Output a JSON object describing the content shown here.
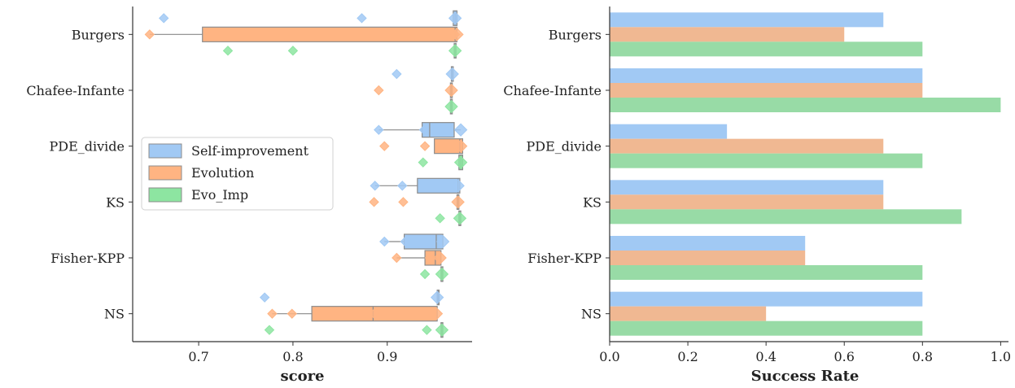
{
  "chart_data": [
    {
      "type": "box",
      "xlabel": "score",
      "categories": [
        "Burgers",
        "Chafee-Infante",
        "PDE_divide",
        "KS",
        "Fisher-KPP",
        "NS"
      ],
      "xlim": [
        0.63,
        0.99
      ],
      "xticks": [
        0.7,
        0.8,
        0.9
      ],
      "xtick_labels": [
        "0.7",
        "0.8",
        "0.9"
      ],
      "legend": {
        "position": "center-left",
        "entries": [
          "Self-improvement",
          "Evolution",
          "Evo_Imp"
        ]
      },
      "series": [
        {
          "name": "Self-improvement",
          "color": "#a1c9f4",
          "boxes": [
            {
              "category": "Burgers",
              "q1": 0.97,
              "median": 0.972,
              "q3": 0.974,
              "whisker_low": 0.97,
              "whisker_high": 0.974,
              "points": [
                0.663,
                0.873,
                0.972
              ]
            },
            {
              "category": "Chafee-Infante",
              "q1": 0.968,
              "median": 0.969,
              "q3": 0.97,
              "whisker_low": 0.968,
              "whisker_high": 0.97,
              "points": [
                0.91,
                0.969
              ]
            },
            {
              "category": "PDE_divide",
              "q1": 0.937,
              "median": 0.945,
              "q3": 0.971,
              "whisker_low": 0.891,
              "whisker_high": 0.978,
              "points": [
                0.891,
                0.939,
                0.978
              ]
            },
            {
              "category": "KS",
              "q1": 0.932,
              "median": 0.975,
              "q3": 0.977,
              "whisker_low": 0.887,
              "whisker_high": 0.977,
              "points": [
                0.887,
                0.916,
                0.975
              ]
            },
            {
              "category": "Fisher-KPP",
              "q1": 0.918,
              "median": 0.952,
              "q3": 0.959,
              "whisker_low": 0.897,
              "whisker_high": 0.959,
              "points": [
                0.897,
                0.919,
                0.959
              ]
            },
            {
              "category": "NS",
              "q1": 0.953,
              "median": 0.954,
              "q3": 0.955,
              "whisker_low": 0.953,
              "whisker_high": 0.955,
              "points": [
                0.77,
                0.953
              ]
            }
          ]
        },
        {
          "name": "Evolution",
          "color": "#ffb482",
          "boxes": [
            {
              "category": "Burgers",
              "q1": 0.704,
              "median": 0.972,
              "q3": 0.974,
              "whisker_low": 0.648,
              "whisker_high": 0.974,
              "points": [
                0.648,
                0.972,
                0.974
              ]
            },
            {
              "category": "Chafee-Infante",
              "q1": 0.967,
              "median": 0.968,
              "q3": 0.969,
              "whisker_low": 0.967,
              "whisker_high": 0.969,
              "points": [
                0.891,
                0.968
              ]
            },
            {
              "category": "PDE_divide",
              "q1": 0.95,
              "median": 0.977,
              "q3": 0.98,
              "whisker_low": 0.95,
              "whisker_high": 0.98,
              "points": [
                0.897,
                0.94,
                0.978
              ]
            },
            {
              "category": "KS",
              "q1": 0.974,
              "median": 0.975,
              "q3": 0.976,
              "whisker_low": 0.974,
              "whisker_high": 0.976,
              "points": [
                0.886,
                0.917,
                0.975
              ]
            },
            {
              "category": "Fisher-KPP",
              "q1": 0.94,
              "median": 0.951,
              "q3": 0.957,
              "whisker_low": 0.91,
              "whisker_high": 0.957,
              "points": [
                0.91,
                0.945,
                0.956
              ]
            },
            {
              "category": "NS",
              "q1": 0.82,
              "median": 0.885,
              "q3": 0.953,
              "whisker_low": 0.778,
              "whisker_high": 0.953,
              "points": [
                0.778,
                0.799,
                0.886,
                0.952
              ]
            }
          ]
        },
        {
          "name": "Evo_Imp",
          "color": "#8de5a1",
          "boxes": [
            {
              "category": "Burgers",
              "q1": 0.971,
              "median": 0.972,
              "q3": 0.973,
              "whisker_low": 0.971,
              "whisker_high": 0.973,
              "points": [
                0.731,
                0.8,
                0.972
              ]
            },
            {
              "category": "Chafee-Infante",
              "q1": 0.967,
              "median": 0.968,
              "q3": 0.969,
              "whisker_low": 0.967,
              "whisker_high": 0.969,
              "points": [
                0.968
              ]
            },
            {
              "category": "PDE_divide",
              "q1": 0.976,
              "median": 0.978,
              "q3": 0.98,
              "whisker_low": 0.976,
              "whisker_high": 0.98,
              "points": [
                0.938,
                0.978
              ]
            },
            {
              "category": "KS",
              "q1": 0.976,
              "median": 0.977,
              "q3": 0.978,
              "whisker_low": 0.976,
              "whisker_high": 0.978,
              "points": [
                0.956,
                0.977
              ]
            },
            {
              "category": "Fisher-KPP",
              "q1": 0.957,
              "median": 0.958,
              "q3": 0.959,
              "whisker_low": 0.957,
              "whisker_high": 0.959,
              "points": [
                0.94,
                0.958
              ]
            },
            {
              "category": "NS",
              "q1": 0.957,
              "median": 0.958,
              "q3": 0.959,
              "whisker_low": 0.957,
              "whisker_high": 0.959,
              "points": [
                0.775,
                0.942,
                0.958
              ]
            }
          ]
        }
      ]
    },
    {
      "type": "bar",
      "orientation": "horizontal",
      "xlabel": "Success Rate",
      "categories": [
        "Burgers",
        "Chafee-Infante",
        "PDE_divide",
        "KS",
        "Fisher-KPP",
        "NS"
      ],
      "xlim": [
        0.0,
        1.02
      ],
      "xticks": [
        0.0,
        0.2,
        0.4,
        0.6,
        0.8,
        1.0
      ],
      "xtick_labels": [
        "0.0",
        "0.2",
        "0.4",
        "0.6",
        "0.8",
        "1.0"
      ],
      "series": [
        {
          "name": "Self-improvement",
          "color": "#a1c9f4",
          "values": [
            0.7,
            0.8,
            0.3,
            0.7,
            0.5,
            0.8
          ]
        },
        {
          "name": "Evolution",
          "color": "#f0b892",
          "values": [
            0.6,
            0.8,
            0.7,
            0.7,
            0.5,
            0.4
          ]
        },
        {
          "name": "Evo_Imp",
          "color": "#98dba6",
          "values": [
            0.8,
            1.0,
            0.8,
            0.9,
            0.8,
            0.8
          ]
        }
      ]
    }
  ]
}
